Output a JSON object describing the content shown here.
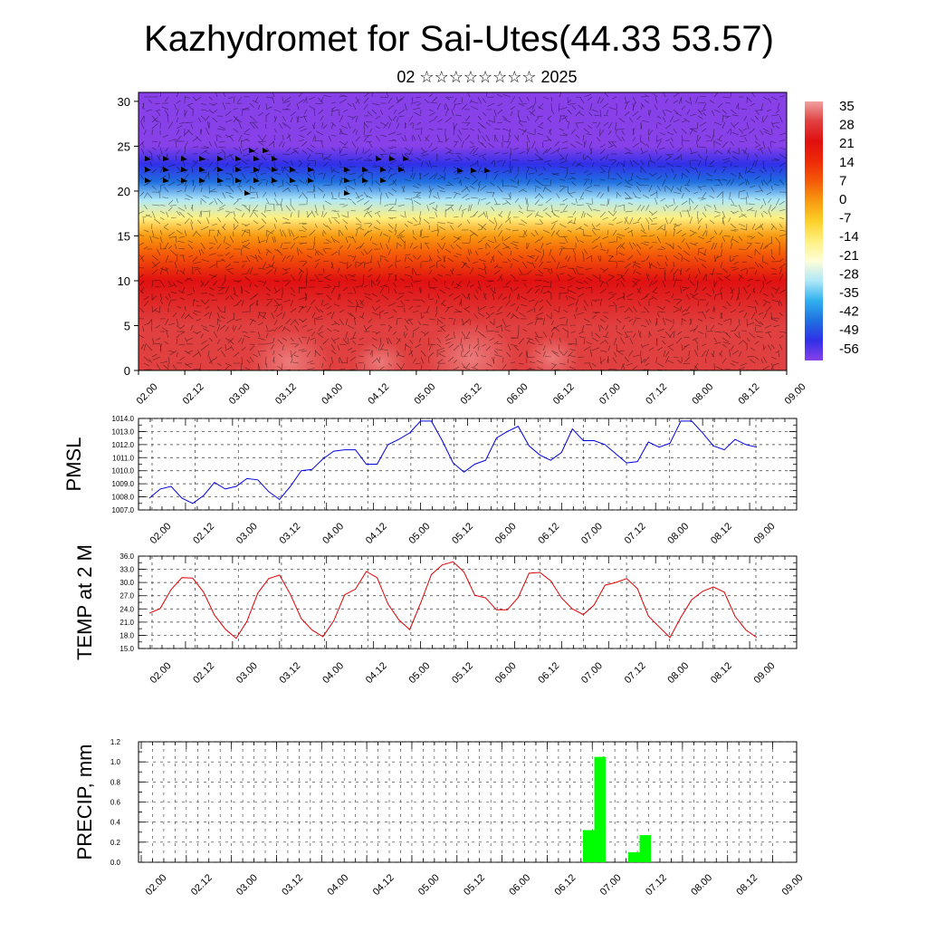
{
  "title": "Kazhydromet for Sai-Utes(44.33 53.57)",
  "subtitle": "02 ☆☆☆☆☆☆☆☆ 2025",
  "time_labels": [
    "02.00",
    "02.12",
    "03.00",
    "03.12",
    "04.00",
    "04.12",
    "05.00",
    "05.12",
    "06.00",
    "06.12",
    "07.00",
    "07.12",
    "08.00",
    "08.12",
    "09.00"
  ],
  "chart_data": [
    {
      "type": "heatmap",
      "y_ticks": [
        0,
        5,
        10,
        15,
        20,
        25,
        30
      ],
      "ylim": [
        0,
        31
      ],
      "colorbar": {
        "labels": [
          "35",
          "28",
          "21",
          "14",
          "7",
          "0",
          "-7",
          "-14",
          "-21",
          "-28",
          "-35",
          "-42",
          "-49",
          "-56"
        ],
        "colors": [
          "#f0a0a0",
          "#e04040",
          "#e01010",
          "#ee2a08",
          "#f45a08",
          "#f89a10",
          "#fcd028",
          "#fff080",
          "#fefed8",
          "#b0e8f8",
          "#30b0ee",
          "#2070e0",
          "#3030e8",
          "#8840e8"
        ]
      },
      "temperature_profile_levels": [
        0,
        5,
        10,
        13,
        15,
        17,
        19,
        21,
        23,
        25,
        27,
        31
      ],
      "temperature_profile_values": [
        30,
        25,
        18,
        10,
        0,
        -14,
        -28,
        -40,
        -50,
        -60,
        -63,
        -60
      ]
    },
    {
      "type": "line",
      "ylabel": "PMSL",
      "ylim": [
        1007.0,
        1014.0
      ],
      "y_ticks": [
        "1007.0",
        "1008.0",
        "1009.0",
        "1010.0",
        "1011.0",
        "1012.0",
        "1013.0",
        "1014.0"
      ],
      "color": "#0000dd",
      "values": [
        1007.9,
        1008.6,
        1008.8,
        1007.9,
        1007.5,
        1008.1,
        1009.1,
        1008.6,
        1008.8,
        1009.4,
        1009.3,
        1008.4,
        1007.8,
        1008.8,
        1010.0,
        1010.1,
        1010.9,
        1011.5,
        1011.6,
        1011.6,
        1010.5,
        1010.5,
        1012.0,
        1012.4,
        1012.9,
        1013.8,
        1013.8,
        1012.3,
        1010.6,
        1009.9,
        1010.5,
        1010.8,
        1012.5,
        1013.0,
        1013.4,
        1011.9,
        1011.2,
        1010.8,
        1011.4,
        1013.2,
        1012.3,
        1012.3,
        1012.0,
        1011.3,
        1010.6,
        1010.7,
        1012.2,
        1011.8,
        1012.1,
        1013.8,
        1013.8,
        1012.9,
        1011.9,
        1011.6,
        1012.4,
        1012.0,
        1011.8
      ],
      "x_label_start_index": 0
    },
    {
      "type": "line",
      "ylabel": "TEMP at 2 M",
      "ylim": [
        15.0,
        36.0
      ],
      "y_ticks": [
        "15.0",
        "18.0",
        "21.0",
        "24.0",
        "27.0",
        "30.0",
        "33.0",
        "36.0"
      ],
      "color": "#dd0000",
      "values": [
        23.0,
        24.1,
        28.4,
        31.1,
        31.0,
        27.8,
        22.6,
        19.4,
        17.3,
        21.2,
        27.6,
        30.9,
        31.7,
        27.3,
        21.8,
        19.2,
        17.7,
        21.3,
        27.2,
        28.5,
        32.5,
        31.1,
        25.1,
        21.5,
        19.3,
        25.3,
        31.8,
        34.0,
        34.7,
        32.4,
        27.1,
        26.5,
        23.8,
        23.8,
        26.6,
        32.1,
        32.3,
        30.4,
        26.5,
        24.0,
        22.7,
        24.9,
        29.4,
        30.0,
        30.9,
        28.6,
        22.4,
        19.9,
        17.5,
        22.1,
        26.1,
        28.0,
        29.0,
        27.8,
        22.3,
        19.2,
        17.5
      ],
      "x_label_start_index": 0
    },
    {
      "type": "bar",
      "ylabel": "PRECIP, mm",
      "ylim": [
        0.0,
        1.2
      ],
      "y_ticks": [
        "0.0",
        "0.2",
        "0.4",
        "0.6",
        "0.8",
        "1.0",
        "1.2"
      ],
      "color": "#00ff00",
      "values": [
        0,
        0,
        0,
        0,
        0,
        0,
        0,
        0,
        0,
        0,
        0,
        0,
        0,
        0,
        0,
        0,
        0,
        0,
        0,
        0,
        0,
        0,
        0,
        0,
        0,
        0,
        0,
        0,
        0,
        0,
        0,
        0,
        0,
        0,
        0,
        0,
        0,
        0,
        0,
        0.32,
        1.05,
        0,
        0,
        0.1,
        0.27,
        0,
        0,
        0,
        0,
        0,
        0,
        0,
        0,
        0,
        0,
        0,
        0
      ]
    }
  ]
}
